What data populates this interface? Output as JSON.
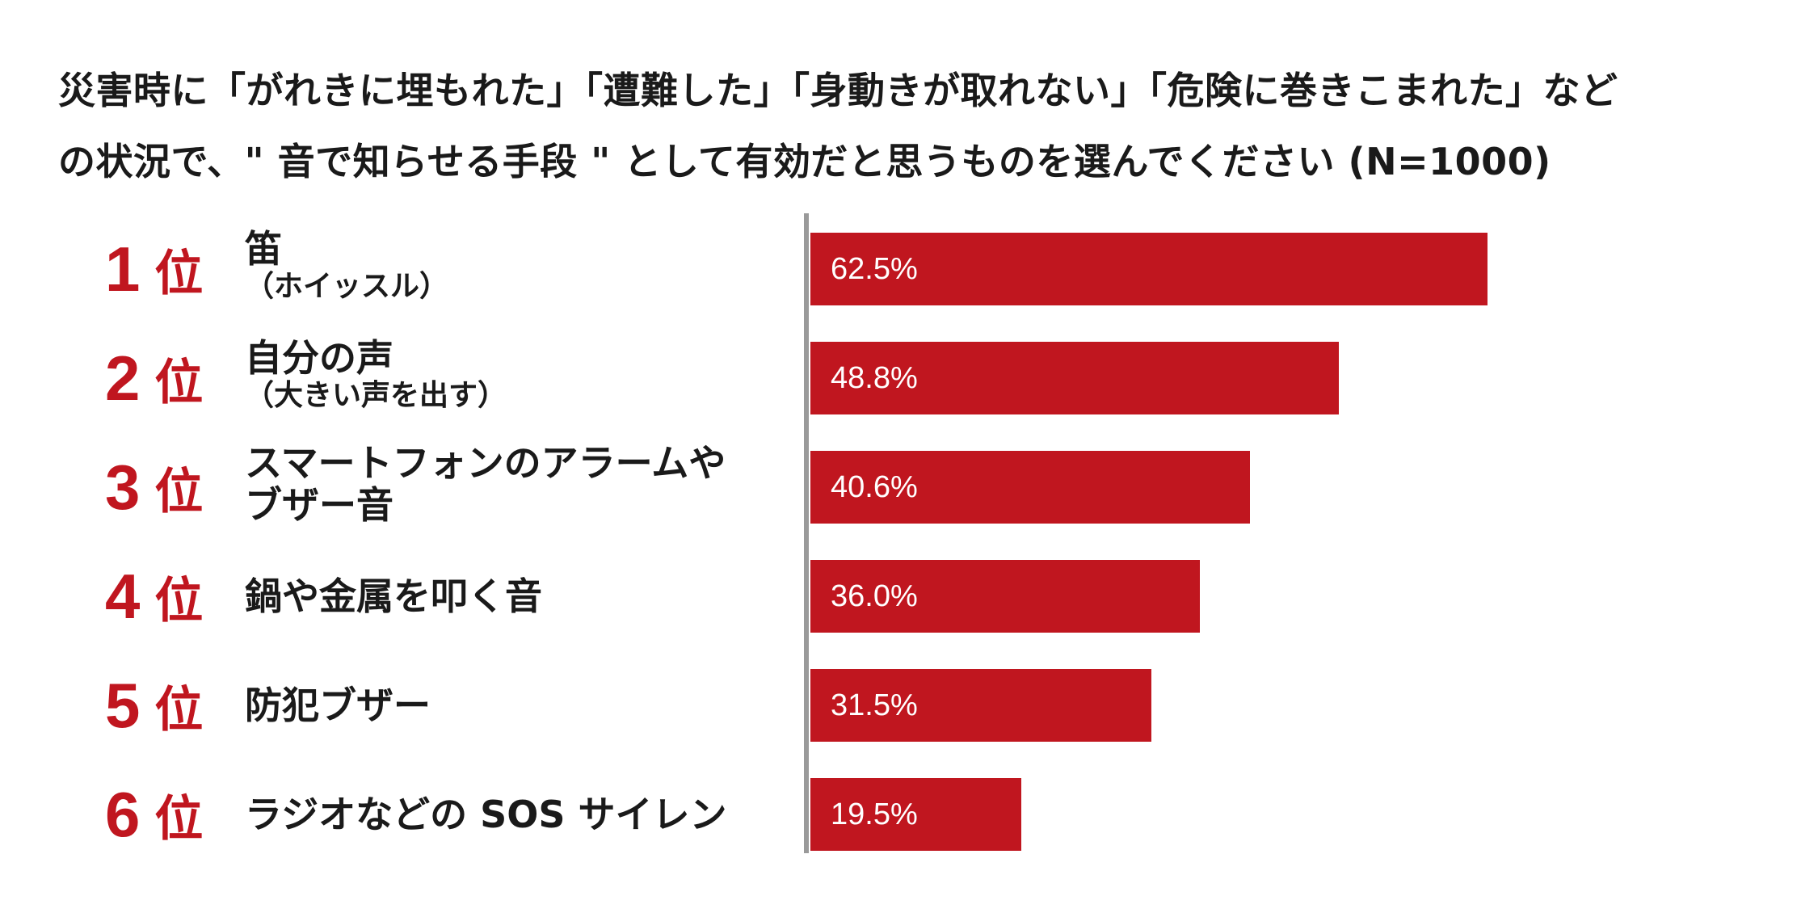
{
  "title": {
    "line1": "災害時に「がれきに埋もれた」「遭難した」「身動きが取れない」「危険に巻きこまれた」など",
    "line2": "の状況で、\" 音で知らせる手段 \" として有効だと思うものを選んでください (N=1000)"
  },
  "rank_suffix": "位",
  "colors": {
    "bar": "#c0161f",
    "rank": "#c0161f",
    "axis": "#9a9a9a"
  },
  "chart_data": {
    "type": "bar",
    "orientation": "horizontal",
    "title": "災害時に「がれきに埋もれた」「遭難した」「身動きが取れない」「危険に巻きこまれた」などの状況で、\" 音で知らせる手段 \" として有効だと思うものを選んでください (N=1000)",
    "xlim": [
      0,
      100
    ],
    "grid": false,
    "legend": "none",
    "items": [
      {
        "rank": "1",
        "label": "笛",
        "sublabel": "（ホイッスル）",
        "value": 62.5,
        "value_label": "62.5%"
      },
      {
        "rank": "2",
        "label": "自分の声",
        "sublabel": "（大きい声を出す）",
        "value": 48.8,
        "value_label": "48.8%"
      },
      {
        "rank": "3",
        "label": "スマートフォンのアラームや",
        "sublabel": "ブザー音",
        "value": 40.6,
        "value_label": "40.6%"
      },
      {
        "rank": "4",
        "label": "鍋や金属を叩く音",
        "sublabel": "",
        "value": 36.0,
        "value_label": "36.0%"
      },
      {
        "rank": "5",
        "label": "防犯ブザー",
        "sublabel": "",
        "value": 31.5,
        "value_label": "31.5%"
      },
      {
        "rank": "6",
        "label": "ラジオなどの SOS サイレン",
        "sublabel": "",
        "value": 19.5,
        "value_label": "19.5%"
      }
    ]
  }
}
